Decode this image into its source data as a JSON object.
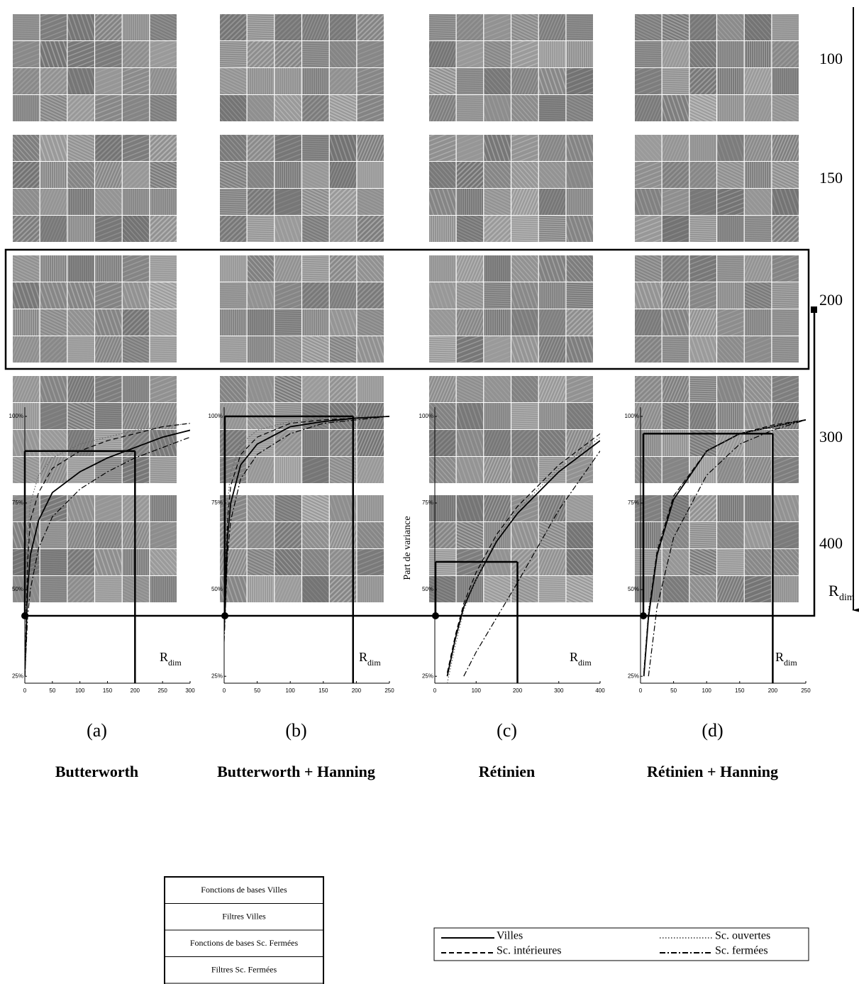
{
  "rdim_axis": {
    "main": "R",
    "sub": "dim",
    "ticks": [
      100,
      150,
      200,
      300,
      400
    ]
  },
  "chart_data": [
    {
      "type": "line",
      "title": "Butterworth",
      "panel": "(a)",
      "annotation": {
        "main": "R",
        "sub": "dim"
      },
      "x": [
        0,
        5,
        10,
        25,
        50,
        100,
        150,
        200,
        250,
        300
      ],
      "xlim": [
        0,
        300
      ],
      "xticks": [
        0,
        50,
        100,
        150,
        200,
        250,
        300
      ],
      "ylim": [
        23,
        101
      ],
      "yticks": [
        {
          "value": 25,
          "label": "25%"
        },
        {
          "value": 50,
          "label": "50%"
        },
        {
          "value": 75,
          "label": "75%"
        },
        {
          "value": 100,
          "label": "100%"
        }
      ],
      "rdim_marker": {
        "x": 200,
        "y": 90
      },
      "series": [
        {
          "name": "Villes",
          "color": "#000000",
          "style": "solid",
          "values": [
            25,
            50,
            60,
            70,
            78,
            84,
            88,
            91,
            94,
            96
          ]
        },
        {
          "name": "Sc. ouvertes",
          "color": "#666666",
          "style": "dotted",
          "values": [
            25,
            65,
            75,
            83,
            88,
            92,
            94,
            96,
            97,
            98
          ]
        },
        {
          "name": "Sc. intérieures",
          "color": "#000000",
          "style": "dashed",
          "values": [
            25,
            58,
            70,
            78,
            85,
            90,
            93,
            95,
            97,
            98
          ]
        },
        {
          "name": "Sc. fermées",
          "color": "#000000",
          "style": "dashdot",
          "values": [
            25,
            42,
            50,
            62,
            71,
            79,
            84,
            88,
            91,
            94
          ]
        }
      ]
    },
    {
      "type": "line",
      "title": "Butterworth + Hanning",
      "panel": "(b)",
      "annotation": {
        "main": "R",
        "sub": "dim"
      },
      "x": [
        0,
        5,
        10,
        25,
        50,
        100,
        150,
        200,
        250
      ],
      "xlim": [
        0,
        250
      ],
      "xticks": [
        0,
        50,
        100,
        150,
        200,
        250
      ],
      "ylim": [
        23,
        101
      ],
      "yticks": [
        {
          "value": 25,
          "label": "25%"
        },
        {
          "value": 50,
          "label": "50%"
        },
        {
          "value": 75,
          "label": "75%"
        },
        {
          "value": 100,
          "label": "100%"
        }
      ],
      "rdim_marker": {
        "x": 195,
        "y": 100
      },
      "series": [
        {
          "name": "Villes",
          "color": "#000000",
          "style": "solid",
          "values": [
            38,
            65,
            75,
            86,
            92,
            97,
            98.5,
            99.5,
            100
          ]
        },
        {
          "name": "Sc. ouvertes",
          "color": "#666666",
          "style": "dotted",
          "values": [
            45,
            75,
            84,
            92,
            96,
            98.5,
            99.5,
            100,
            100
          ]
        },
        {
          "name": "Sc. intérieures",
          "color": "#000000",
          "style": "dashed",
          "values": [
            40,
            70,
            80,
            89,
            94,
            98,
            99,
            99.5,
            100
          ]
        },
        {
          "name": "Sc. fermées",
          "color": "#000000",
          "style": "dashdot",
          "values": [
            35,
            60,
            70,
            82,
            89,
            95,
            98,
            99,
            100
          ]
        }
      ]
    },
    {
      "type": "line",
      "title": "Rétinien",
      "panel": "(c)",
      "ylabel": "Part de variance",
      "annotation": {
        "main": "R",
        "sub": "dim"
      },
      "x": [
        0,
        30,
        50,
        70,
        100,
        150,
        200,
        300,
        400
      ],
      "xlim": [
        0,
        400
      ],
      "xticks": [
        0,
        100,
        200,
        300,
        400
      ],
      "ylim": [
        23,
        101
      ],
      "yticks": [
        {
          "value": 25,
          "label": "25%"
        },
        {
          "value": 50,
          "label": "50%"
        },
        {
          "value": 75,
          "label": "75%"
        },
        {
          "value": 100,
          "label": "100%"
        }
      ],
      "rdim_marker": {
        "x": 200,
        "y": 58
      },
      "series": [
        {
          "name": "Villes",
          "color": "#000000",
          "style": "solid",
          "values": [
            null,
            25,
            36,
            45,
            53,
            64,
            72,
            84,
            93
          ]
        },
        {
          "name": "Sc. ouvertes",
          "color": "#666666",
          "style": "dotted",
          "values": [
            null,
            23,
            34,
            44,
            53,
            65,
            73,
            85,
            94
          ]
        },
        {
          "name": "Sc. intérieures",
          "color": "#000000",
          "style": "dashed",
          "values": [
            null,
            26,
            37,
            46,
            55,
            66,
            74,
            86,
            95
          ]
        },
        {
          "name": "Sc. fermées",
          "color": "#000000",
          "style": "dashdot",
          "values": [
            null,
            null,
            null,
            25,
            32,
            42,
            52,
            73,
            90
          ]
        }
      ]
    },
    {
      "type": "line",
      "title": "Rétinien + Hanning",
      "panel": "(d)",
      "annotation": {
        "main": "R",
        "sub": "dim"
      },
      "x": [
        0,
        5,
        12,
        25,
        50,
        100,
        150,
        200,
        250
      ],
      "xlim": [
        0,
        250
      ],
      "xticks": [
        0,
        50,
        100,
        150,
        200,
        250
      ],
      "ylim": [
        23,
        101
      ],
      "yticks": [
        {
          "value": 25,
          "label": "25%"
        },
        {
          "value": 50,
          "label": "50%"
        },
        {
          "value": 75,
          "label": "75%"
        },
        {
          "value": 100,
          "label": "100%"
        }
      ],
      "rdim_marker": {
        "x": 200,
        "y": 95
      },
      "series": [
        {
          "name": "Villes",
          "color": "#000000",
          "style": "solid",
          "values": [
            null,
            25,
            42,
            60,
            76,
            90,
            95,
            97,
            99
          ]
        },
        {
          "name": "Sc. ouvertes",
          "color": "#666666",
          "style": "dotted",
          "values": [
            null,
            27,
            44,
            62,
            77,
            90,
            95,
            97,
            99
          ]
        },
        {
          "name": "Sc. intérieures",
          "color": "#000000",
          "style": "dashed",
          "values": [
            null,
            26,
            43,
            61,
            77,
            90,
            95,
            97.5,
            99
          ]
        },
        {
          "name": "Sc. fermées",
          "color": "#000000",
          "style": "dashdot",
          "values": [
            null,
            null,
            25,
            45,
            65,
            83,
            92,
            96,
            99
          ]
        }
      ]
    }
  ],
  "legend_table": [
    "Fonctions de bases Villes",
    "Filtres Villes",
    "Fonctions de bases Sc. Fermées",
    "Filtres Sc. Fermées"
  ]
}
